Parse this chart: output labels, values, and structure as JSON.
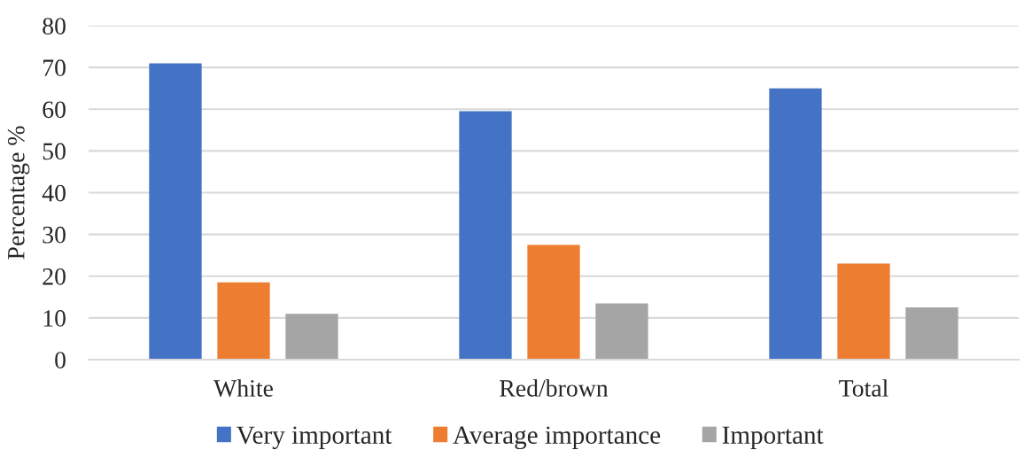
{
  "chart_data": {
    "type": "bar",
    "ylabel": "Percentage %",
    "categories": [
      "White",
      "Red/brown",
      "Total"
    ],
    "series": [
      {
        "name": "Very important",
        "color": "#4472c4",
        "values": [
          71,
          59.5,
          65
        ]
      },
      {
        "name": "Average importance",
        "color": "#ed7d31",
        "values": [
          18.5,
          27.5,
          23
        ]
      },
      {
        "name": "Important",
        "color": "#a5a5a5",
        "values": [
          11,
          13.5,
          12.5
        ]
      }
    ],
    "ylim": [
      0,
      80
    ],
    "yticks": [
      0,
      10,
      20,
      30,
      40,
      50,
      60,
      70,
      80
    ],
    "grid": "y",
    "legend": "bottom"
  }
}
